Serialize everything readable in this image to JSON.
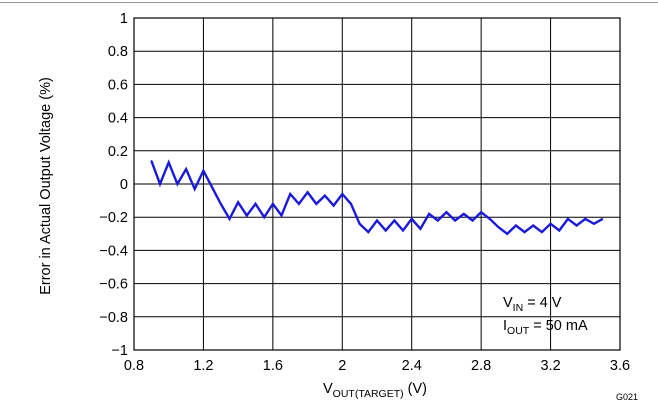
{
  "chart_data": {
    "type": "line",
    "title": "",
    "xlabel": {
      "base": "V",
      "sub": "OUT(TARGET)",
      "suffix": " (V)"
    },
    "ylabel": "Error in Actual Output Voltage (%)",
    "xlim": [
      0.8,
      3.6
    ],
    "ylim": [
      -1,
      1
    ],
    "x_ticks": [
      "0.8",
      "1.2",
      "1.6",
      "2",
      "2.4",
      "2.8",
      "3.2",
      "3.6"
    ],
    "y_ticks": [
      "1",
      "0.8",
      "0.6",
      "0.4",
      "0.2",
      "0",
      "−0.2",
      "−0.4",
      "−0.6",
      "−0.8",
      "−1"
    ],
    "grid": true,
    "series": [
      {
        "color": "#1a1adb",
        "x": [
          0.9,
          0.95,
          1.0,
          1.05,
          1.1,
          1.15,
          1.2,
          1.25,
          1.3,
          1.35,
          1.4,
          1.45,
          1.5,
          1.55,
          1.6,
          1.65,
          1.7,
          1.75,
          1.8,
          1.85,
          1.9,
          1.95,
          2.0,
          2.05,
          2.1,
          2.15,
          2.2,
          2.25,
          2.3,
          2.35,
          2.4,
          2.45,
          2.5,
          2.55,
          2.6,
          2.65,
          2.7,
          2.75,
          2.8,
          2.85,
          2.9,
          2.95,
          3.0,
          3.05,
          3.1,
          3.15,
          3.2,
          3.25,
          3.3,
          3.35,
          3.4,
          3.45,
          3.5
        ],
        "y": [
          0.14,
          0.0,
          0.13,
          0.0,
          0.09,
          -0.03,
          0.08,
          -0.02,
          -0.12,
          -0.21,
          -0.11,
          -0.19,
          -0.12,
          -0.2,
          -0.12,
          -0.19,
          -0.06,
          -0.12,
          -0.05,
          -0.12,
          -0.07,
          -0.13,
          -0.06,
          -0.12,
          -0.24,
          -0.29,
          -0.22,
          -0.28,
          -0.22,
          -0.28,
          -0.21,
          -0.27,
          -0.18,
          -0.22,
          -0.17,
          -0.22,
          -0.18,
          -0.22,
          -0.17,
          -0.21,
          -0.26,
          -0.3,
          -0.25,
          -0.29,
          -0.25,
          -0.29,
          -0.24,
          -0.28,
          -0.21,
          -0.25,
          -0.21,
          -0.24,
          -0.21
        ]
      }
    ],
    "annotations": [
      {
        "base": "V",
        "sub": "IN",
        "rest": " = 4 V"
      },
      {
        "base": "I",
        "sub": "OUT",
        "rest": " = 50 mA"
      }
    ],
    "figure_id": "G021"
  },
  "colors": {
    "line": "#1a1adb",
    "grid": "#000000",
    "rule": "#aaaaaa"
  }
}
